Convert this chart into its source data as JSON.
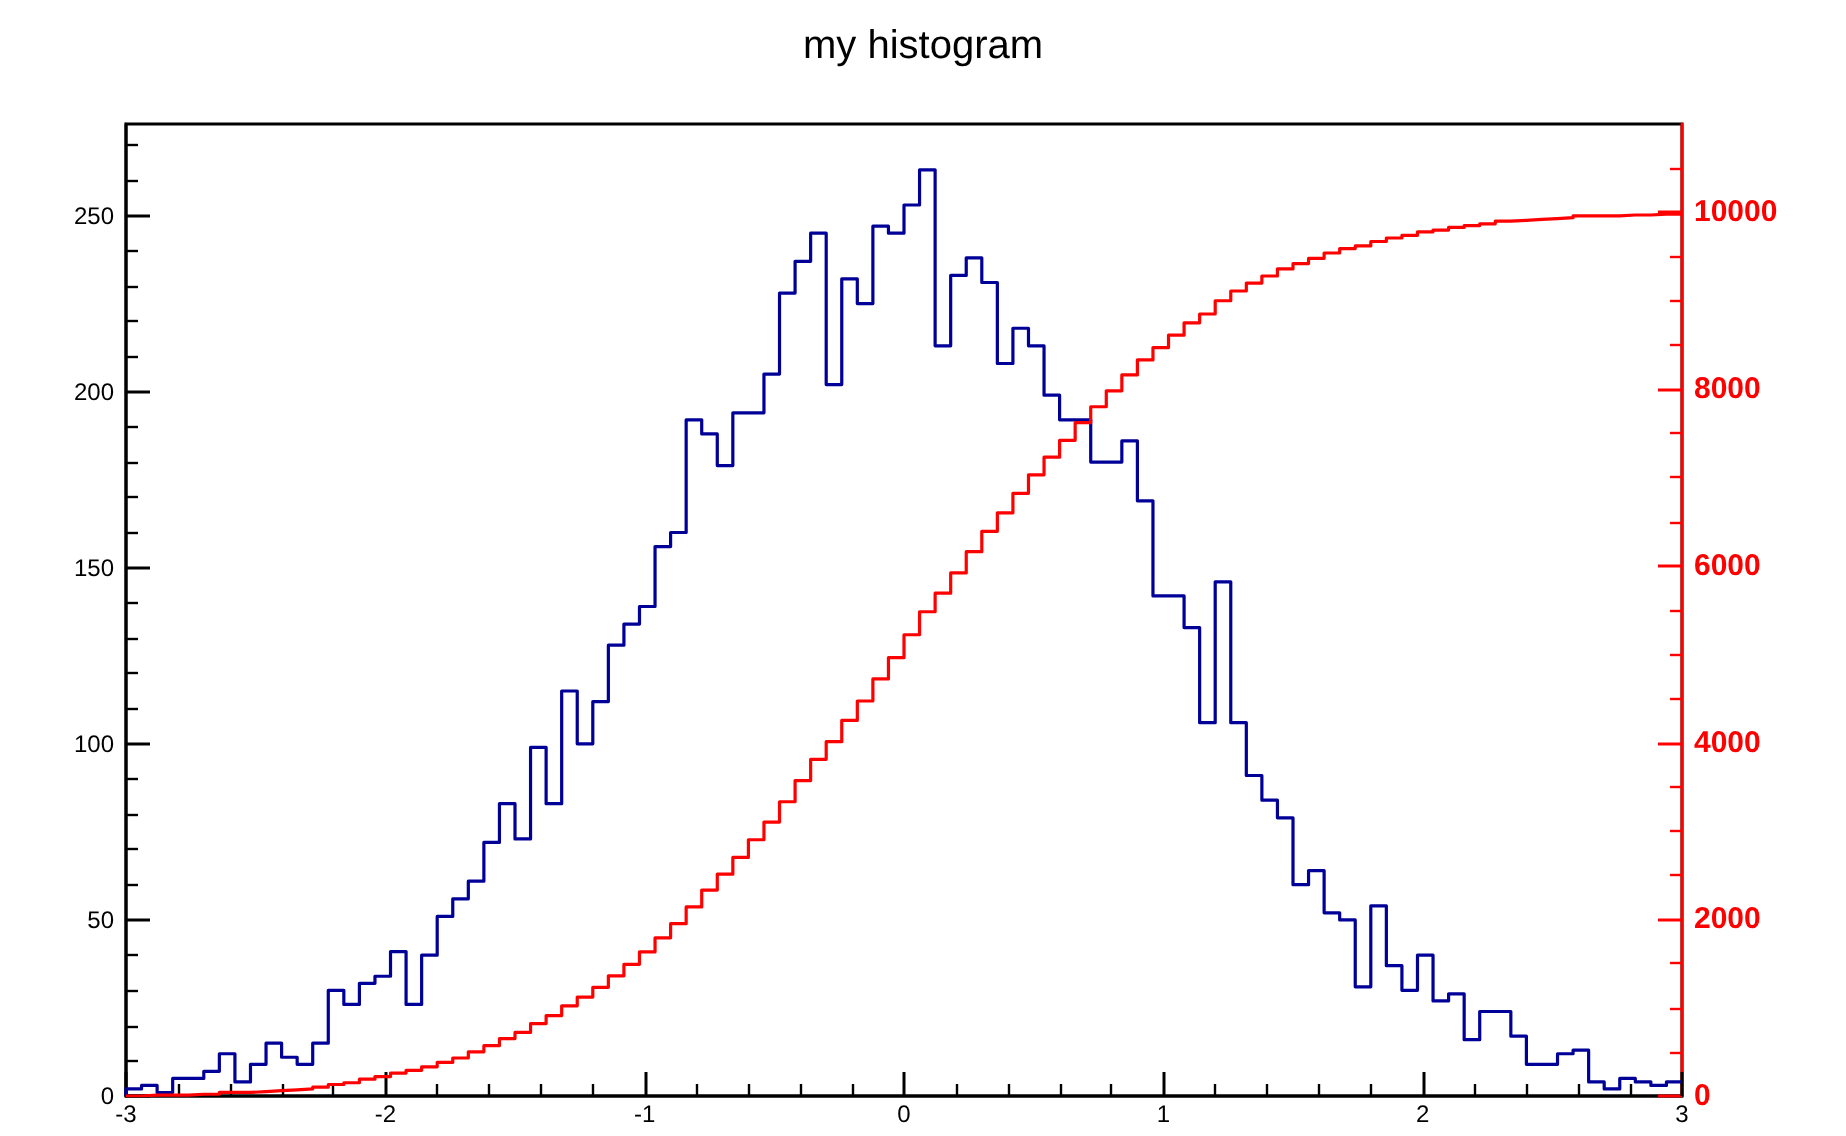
{
  "chart_data": {
    "type": "histogram",
    "title": "my histogram",
    "bins": [
      -3,
      -2.94,
      -2.88,
      -2.82,
      -2.76,
      -2.7,
      -2.64,
      -2.58,
      -2.52,
      -2.46,
      -2.4,
      -2.34,
      -2.28,
      -2.22,
      -2.16,
      -2.1,
      -2.04,
      -1.98,
      -1.92,
      -1.86,
      -1.8,
      -1.74,
      -1.68,
      -1.62,
      -1.56,
      -1.5,
      -1.44,
      -1.38,
      -1.32,
      -1.26,
      -1.2,
      -1.14,
      -1.08,
      -1.02,
      -0.96,
      -0.9,
      -0.84,
      -0.78,
      -0.72,
      -0.66,
      -0.6,
      -0.54,
      -0.48,
      -0.42,
      -0.36,
      -0.3,
      -0.24,
      -0.18,
      -0.12,
      -0.06,
      0,
      0.06,
      0.12,
      0.18,
      0.24,
      0.3,
      0.36,
      0.42,
      0.48,
      0.54,
      0.6,
      0.66,
      0.72,
      0.78,
      0.84,
      0.9,
      0.96,
      1.02,
      1.08,
      1.14,
      1.2,
      1.26,
      1.32,
      1.38,
      1.44,
      1.5,
      1.56,
      1.62,
      1.68,
      1.74,
      1.8,
      1.86,
      1.92,
      1.98,
      2.04,
      2.1,
      2.16,
      2.22,
      2.28,
      2.34,
      2.4,
      2.46,
      2.52,
      2.58,
      2.64,
      2.7,
      2.76,
      2.82,
      2.88,
      2.94,
      3
    ],
    "series": [
      {
        "color": "#000099",
        "values": [
          2,
          3,
          1,
          5,
          5,
          7,
          12,
          4,
          9,
          15,
          11,
          9,
          15,
          30,
          26,
          32,
          34,
          41,
          26,
          40,
          51,
          56,
          61,
          72,
          83,
          73,
          99,
          83,
          115,
          100,
          112,
          128,
          134,
          139,
          156,
          160,
          192,
          188,
          179,
          194,
          194,
          205,
          228,
          237,
          245,
          202,
          232,
          225,
          247,
          245,
          253,
          263,
          213,
          233,
          238,
          231,
          208,
          218,
          213,
          199,
          192,
          192,
          180,
          180,
          186,
          169,
          142,
          142,
          133,
          106,
          146,
          106,
          91,
          84,
          79,
          60,
          64,
          52,
          50,
          31,
          54,
          37,
          30,
          40,
          27,
          29,
          16,
          24,
          24,
          17,
          9,
          9,
          12,
          13,
          4,
          2,
          5,
          4,
          3,
          4
        ]
      },
      {
        "axis": "y2",
        "color": "#ff0000",
        "values": [
          0,
          10,
          10,
          10,
          20,
          20,
          40,
          40,
          50,
          60,
          70,
          80,
          100,
          130,
          150,
          190,
          220,
          260,
          290,
          330,
          380,
          430,
          500,
          570,
          650,
          720,
          820,
          910,
          1020,
          1120,
          1230,
          1360,
          1490,
          1630,
          1790,
          1950,
          2140,
          2330,
          2510,
          2700,
          2900,
          3100,
          3330,
          3570,
          3810,
          4010,
          4250,
          4470,
          4720,
          4960,
          5220,
          5480,
          5690,
          5920,
          6160,
          6390,
          6600,
          6820,
          7030,
          7230,
          7420,
          7620,
          7800,
          7980,
          8160,
          8330,
          8470,
          8610,
          8750,
          8850,
          9000,
          9110,
          9200,
          9280,
          9360,
          9420,
          9480,
          9540,
          9590,
          9620,
          9670,
          9710,
          9740,
          9780,
          9800,
          9830,
          9850,
          9870,
          9900,
          9910,
          9920,
          9930,
          9940,
          9960,
          9960,
          9960,
          9970,
          9970,
          9980,
          9980
        ]
      }
    ],
    "xlim": [
      -3,
      3
    ],
    "xticks": [
      -3,
      -2,
      -1,
      0,
      1,
      2,
      3
    ],
    "ylim": [
      0,
      276
    ],
    "yticks": [
      0,
      50,
      100,
      150,
      200,
      250
    ],
    "y2lim": [
      0,
      11000
    ],
    "y2ticks": [
      0,
      2000,
      4000,
      6000,
      8000,
      10000
    ],
    "grid": false
  }
}
